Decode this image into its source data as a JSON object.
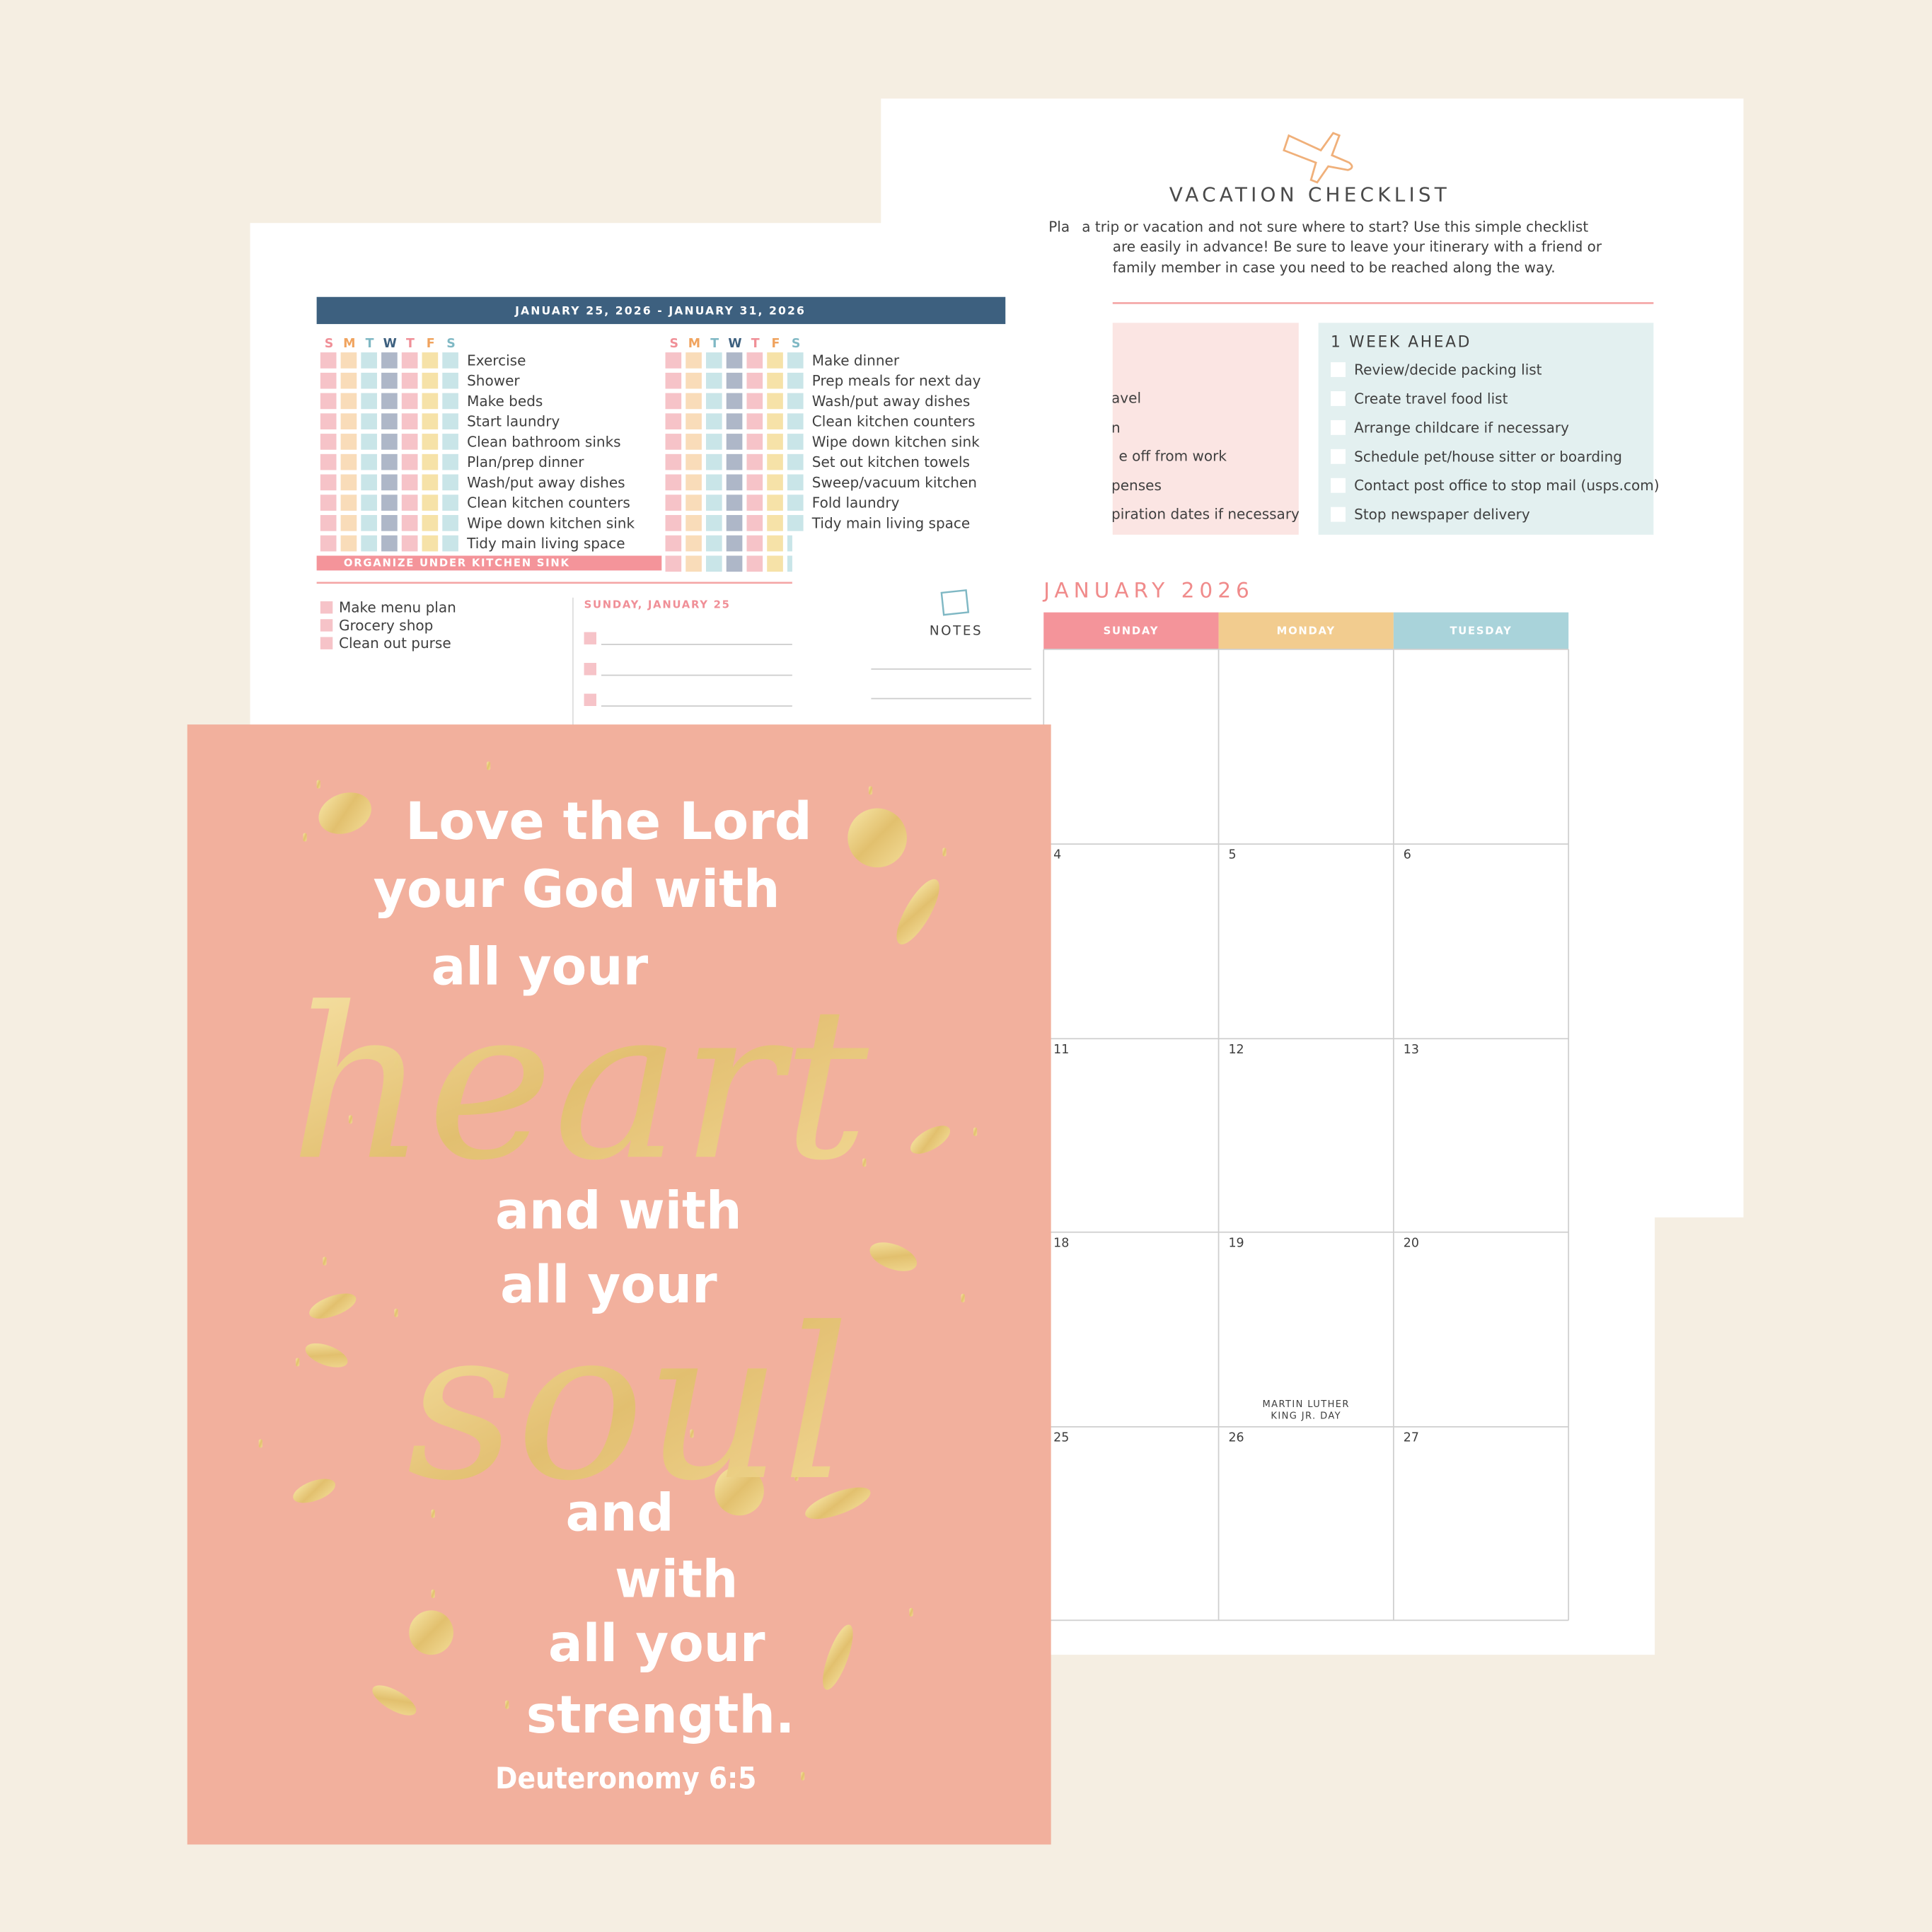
{
  "vacation_checklist": {
    "title": "VACATION CHECKLIST",
    "intro": [
      "Pla",
      "a trip or vacation and not sure where to start? Use this simple checklist",
      "are easily in advance! Be sure to leave your itinerary with a friend or",
      "family member in case you need to be reached along the way."
    ],
    "pink_section_items": [
      "avel",
      "n",
      "e off from work",
      "penses",
      "piration dates if necessary"
    ],
    "week_section": {
      "heading": "1 WEEK AHEAD",
      "items": [
        "Review/decide packing list",
        "Create travel food list",
        "Arrange childcare if necessary",
        "Schedule pet/house sitter or boarding",
        "Contact post office to stop mail (usps.com)",
        "Stop newspaper delivery"
      ]
    }
  },
  "weekly_planner": {
    "date_range": "JANUARY 25, 2026 - JANUARY 31, 2026",
    "day_letters": [
      "S",
      "M",
      "T",
      "W",
      "T",
      "F",
      "S"
    ],
    "left_habits": [
      "Exercise",
      "Shower",
      "Make beds",
      "Start laundry",
      "Clean bathroom sinks",
      "Plan/prep dinner",
      "Wash/put away dishes",
      "Clean kitchen counters",
      "Wipe down kitchen sink",
      "Tidy main living space"
    ],
    "right_habits": [
      "Make dinner",
      "Prep meals for next day",
      "Wash/put away dishes",
      "Clean kitchen counters",
      "Wipe down kitchen sink",
      "Set out kitchen towels",
      "Sweep/vacuum kitchen",
      "Fold laundry",
      "Tidy main living space"
    ],
    "focus": "ORGANIZE UNDER KITCHEN SINK",
    "tasks": [
      "Make menu plan",
      "Grocery shop",
      "Clean out purse"
    ],
    "day_heading": "SUNDAY, JANUARY 25"
  },
  "calendar": {
    "notes_label": "NOTES",
    "title": "JANUARY 2026",
    "weekdays": [
      "SUNDAY",
      "MONDAY",
      "TUESDAY"
    ],
    "dates": [
      [
        4,
        5,
        6
      ],
      [
        11,
        12,
        13
      ],
      [
        18,
        19,
        20
      ],
      [
        25,
        26,
        27
      ]
    ],
    "holiday": [
      "MARTIN LUTHER",
      "KING JR. DAY"
    ]
  },
  "poster": {
    "lines": [
      "Love the Lord",
      "your God with",
      "all your",
      "heart",
      "and with",
      "all your",
      "soul",
      "and",
      "with",
      "all your",
      "strength."
    ],
    "reference": "Deuteronomy 6:5"
  }
}
